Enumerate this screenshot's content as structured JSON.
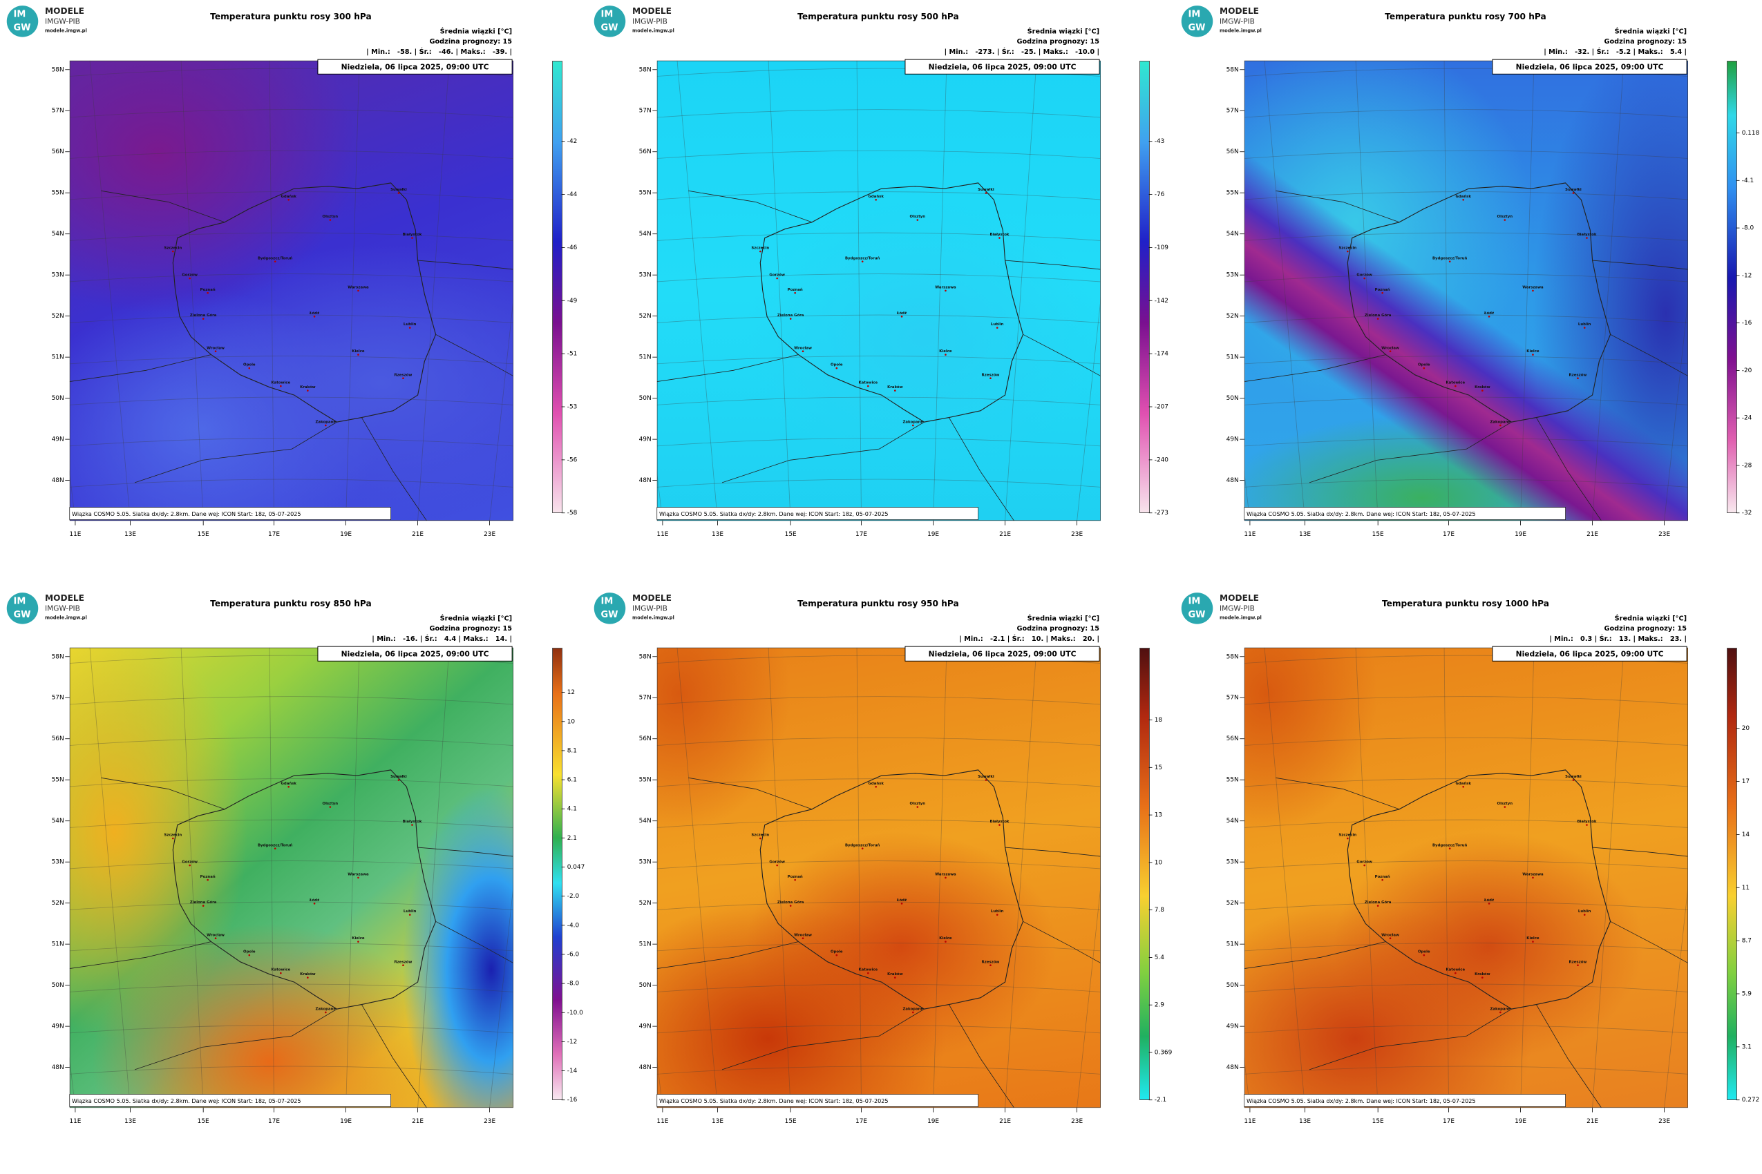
{
  "branding": {
    "logo_top": "IM",
    "logo_bottom": "GW",
    "name": "MODELE",
    "org": "IMGW-PIB",
    "url": "modele.imgw.pl"
  },
  "latitudes": [
    "58N",
    "57N",
    "56N",
    "55N",
    "54N",
    "53N",
    "52N",
    "51N",
    "50N",
    "49N",
    "48N"
  ],
  "longitudes": [
    "11E",
    "13E",
    "15E",
    "17E",
    "19E",
    "21E",
    "23E"
  ],
  "cities": [
    "Gdańsk",
    "Olsztyn",
    "Suwałki",
    "Szczecin",
    "Bydgoszcz/Toruń",
    "Białystok",
    "Gorzów",
    "Poznań",
    "Warszawa",
    "Zielona Góra",
    "Łódź",
    "Lublin",
    "Wrocław",
    "Opole",
    "Kielce",
    "Rzeszów",
    "Katowice",
    "Kraków",
    "Zakopane"
  ],
  "panels": [
    {
      "title": "Temperatura punktu rosy 300 hPa",
      "legend_title": "Średnia wiązki [°C]",
      "forecast": "Godzina prognozy: 15",
      "stats": "| Min.:   -58. | Śr.:   -46. | Maks.:   -39. |",
      "date": "Niedziela, 06 lipca 2025, 09:00 UTC",
      "footer": "Wiązka COSMO 5.05. Siatka dx/dy: 2.8km. Dane wej: ICON Start: 18z, 05-07-2025",
      "colorbar_labels": [
        "-42",
        "-44",
        "-46",
        "-49",
        "-51",
        "-53",
        "-56",
        "-58"
      ]
    },
    {
      "title": "Temperatura punktu rosy 500 hPa",
      "legend_title": "Średnia wiązki [°C]",
      "forecast": "Godzina prognozy: 15",
      "stats": "| Min.:   -273. | Śr.:   -25. | Maks.:   -10.0 |",
      "date": "Niedziela, 06 lipca 2025, 09:00 UTC",
      "footer": "Wiązka COSMO 5.05. Siatka dx/dy: 2.8km. Dane wej: ICON Start: 18z, 05-07-2025",
      "colorbar_labels": [
        "-43",
        "-76",
        "-109",
        "-142",
        "-174",
        "-207",
        "-240",
        "-273"
      ]
    },
    {
      "title": "Temperatura punktu rosy 700 hPa",
      "legend_title": "Średnia wiązki [°C]",
      "forecast": "Godzina prognozy: 15",
      "stats": "| Min.:   -32. | Śr.:   -5.2 | Maks.:   5.4 |",
      "date": "Niedziela, 06 lipca 2025, 09:00 UTC",
      "footer": "Wiązka COSMO 5.05. Siatka dx/dy: 2.8km. Dane wej: ICON Start: 18z, 05-07-2025",
      "colorbar_labels": [
        "0.118",
        "-4.1",
        "-8.0",
        "-12",
        "-16",
        "-20",
        "-24",
        "-28",
        "-32"
      ]
    },
    {
      "title": "Temperatura punktu rosy 850 hPa",
      "legend_title": "Średnia wiązki [°C]",
      "forecast": "Godzina prognozy: 15",
      "stats": "| Min.:   -16. | Śr.:   4.4 | Maks.:   14. |",
      "date": "Niedziela, 06 lipca 2025, 09:00 UTC",
      "footer": "Wiązka COSMO 5.05. Siatka dx/dy: 2.8km. Dane wej: ICON Start: 18z, 05-07-2025",
      "colorbar_labels": [
        "12",
        "10",
        "8.1",
        "6.1",
        "4.1",
        "2.1",
        "0.047",
        "-2.0",
        "-4.0",
        "-6.0",
        "-8.0",
        "-10.0",
        "-12",
        "-14",
        "-16"
      ]
    },
    {
      "title": "Temperatura punktu rosy 950 hPa",
      "legend_title": "Średnia wiązki [°C]",
      "forecast": "Godzina prognozy: 15",
      "stats": "| Min.:   -2.1 | Śr.:   10. | Maks.:   20. |",
      "date": "Niedziela, 06 lipca 2025, 09:00 UTC",
      "footer": "Wiązka COSMO 5.05. Siatka dx/dy: 2.8km. Dane wej: ICON Start: 18z, 05-07-2025",
      "colorbar_labels": [
        "18",
        "15",
        "13",
        "10",
        "7.8",
        "5.4",
        "2.9",
        "0.369",
        "-2.1"
      ]
    },
    {
      "title": "Temperatura punktu rosy 1000 hPa",
      "legend_title": "Średnia wiązki [°C]",
      "forecast": "Godzina prognozy: 15",
      "stats": "| Min.:   0.3 | Śr.:   13. | Maks.:   23. |",
      "date": "Niedziela, 06 lipca 2025, 09:00 UTC",
      "footer": "Wiązka COSMO 5.05. Siatka dx/dy: 2.8km. Dane wej: ICON Start: 18z, 05-07-2025",
      "colorbar_labels": [
        "20",
        "17",
        "14",
        "11",
        "8.7",
        "5.9",
        "3.1",
        "0.272"
      ]
    }
  ]
}
